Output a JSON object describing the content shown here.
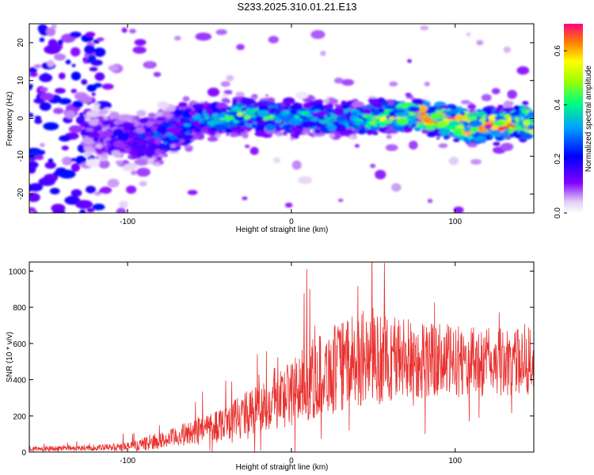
{
  "figure_title": "S233.2025.310.01.21.E13",
  "chart_data": [
    {
      "type": "heatmap",
      "title": "S233.2025.310.01.21.E13",
      "xlabel": "Height of straight line (km)",
      "ylabel": "Frequency (Hz)",
      "xlim": [
        -160,
        148
      ],
      "ylim": [
        -25,
        25
      ],
      "x_ticks": [
        -100,
        0,
        100
      ],
      "y_ticks": [
        -20,
        -10,
        0,
        10,
        20
      ],
      "colorbar": {
        "label": "Normalized spectral amplitude",
        "range": [
          0.0,
          0.7
        ],
        "ticks": [
          0.0,
          0.2,
          0.4,
          0.6
        ]
      },
      "description_points": [
        {
          "x": -120,
          "y": -4,
          "amp": 0.15
        },
        {
          "x": -100,
          "y": -6,
          "amp": 0.2
        },
        {
          "x": -80,
          "y": -5,
          "amp": 0.25
        },
        {
          "x": -60,
          "y": -1,
          "amp": 0.3
        },
        {
          "x": -30,
          "y": 1,
          "amp": 0.45
        },
        {
          "x": 0,
          "y": 0,
          "amp": 0.35
        },
        {
          "x": 40,
          "y": 0,
          "amp": 0.4
        },
        {
          "x": 78,
          "y": 1,
          "amp": 0.6
        },
        {
          "x": 110,
          "y": -2,
          "amp": 0.65
        },
        {
          "x": 135,
          "y": -1,
          "amp": 0.6
        }
      ]
    },
    {
      "type": "line",
      "xlabel": "Height of straight line (km)",
      "ylabel": "SNR (10 * v/v)",
      "xlim": [
        -160,
        148
      ],
      "ylim": [
        0,
        1050
      ],
      "x_ticks": [
        -100,
        0,
        100
      ],
      "y_ticks": [
        0,
        200,
        400,
        600,
        800,
        1000
      ],
      "color": "#e8312f",
      "envelope": {
        "x": [
          -160,
          -120,
          -100,
          -80,
          -60,
          -40,
          -20,
          0,
          20,
          40,
          60,
          80,
          100,
          120,
          148
        ],
        "baseline": [
          20,
          22,
          30,
          60,
          110,
          170,
          240,
          330,
          440,
          500,
          520,
          510,
          500,
          495,
          500
        ],
        "spread": [
          15,
          15,
          25,
          45,
          70,
          100,
          140,
          190,
          240,
          260,
          250,
          220,
          200,
          190,
          180
        ]
      }
    }
  ]
}
